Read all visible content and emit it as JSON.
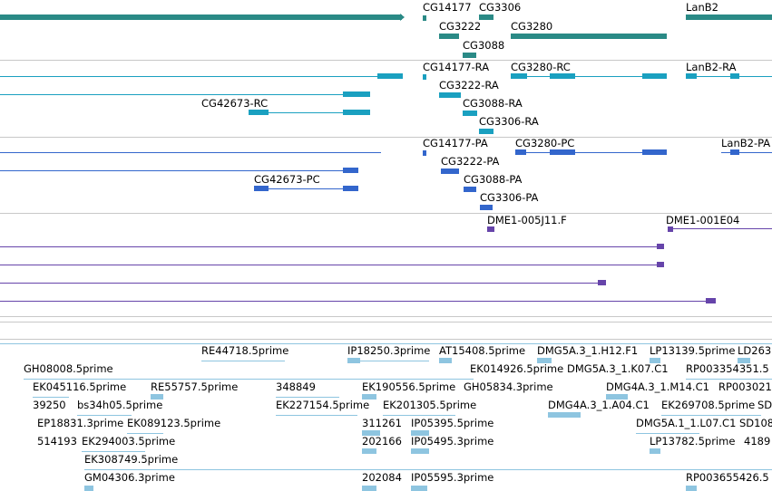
{
  "colors": {
    "gene": "#2a8a86",
    "mrna": "#1aa0c0",
    "protein": "#3366cc",
    "clone": "#6644aa",
    "est": "#8ec5e0",
    "separator": "#c8c8c8"
  },
  "gene_track": {
    "labels": [
      "CG14177",
      "CG3306",
      "LanB2",
      "CG3222",
      "CG3280",
      "CG3088"
    ]
  },
  "mrna_track": {
    "labels": [
      "CG14177-RA",
      "CG3280-RC",
      "LanB2-RA",
      "CG3222-RA",
      "CG42673-RC",
      "CG3088-RA",
      "CG3306-RA"
    ]
  },
  "protein_track": {
    "labels": [
      "CG14177-PA",
      "CG3280-PC",
      "LanB2-PA",
      "CG3222-PA",
      "CG42673-PC",
      "CG3088-PA",
      "CG3306-PA"
    ]
  },
  "clone_track": {
    "labels": [
      "DME1-005J11.F",
      "DME1-001E04"
    ]
  },
  "est_track": {
    "labels": [
      "RE44718.5prime",
      "IP18250.3prime",
      "AT15408.5prime",
      "DMG5A.3_1.H12.F1",
      "LP13139.5prime",
      "LD263",
      "GH08008.5prime",
      "EK014926.5prime",
      "DMG5A.3_1.K07.C1",
      "RP003354351.5",
      "EK045116.5prime",
      "RE55757.5prime",
      "348849",
      "EK190556.5prime",
      "GH05834.3prime",
      "DMG4A.3_1.M14.C1",
      "RP003021",
      "39250",
      "bs34h05.5prime",
      "EK227154.5prime",
      "EK201305.5prime",
      "DMG4A.3_1.A04.C1",
      "EK269708.5prime",
      "SD",
      "EP18831.3prime",
      "EK089123.5prime",
      "311261",
      "IP05395.5prime",
      "DMG5A.1_1.L07.C1",
      "SD108",
      "514193",
      "EK294003.5prime",
      "202166",
      "IP05495.3prime",
      "LP13782.5prime",
      "4189",
      "EK308749.5prime",
      "GM04306.3prime",
      "202084",
      "IP05595.3prime",
      "RP003655426.5"
    ]
  }
}
